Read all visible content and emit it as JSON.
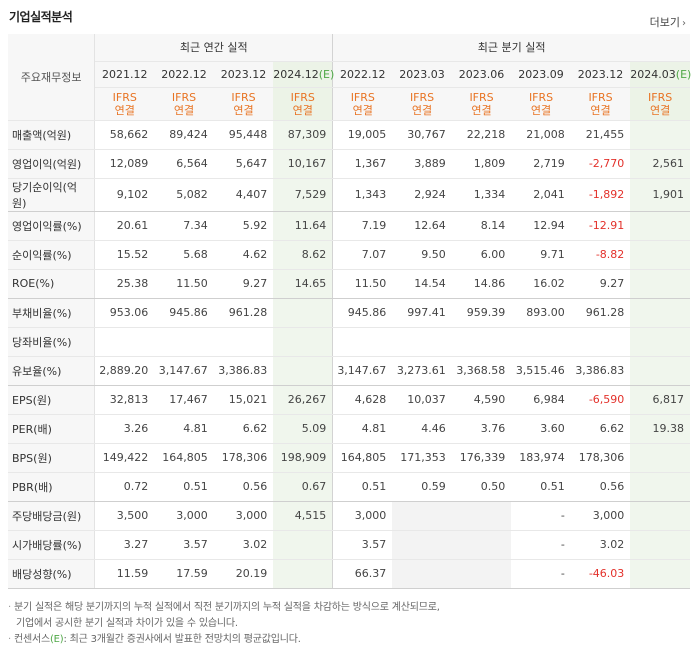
{
  "title": "기업실적분석",
  "more_label": "더보기",
  "more_arrow": "›",
  "label_header": "주요재무정보",
  "annual_header": "최근 연간 실적",
  "quarter_header": "최근 분기 실적",
  "annual_periods": [
    "2021.12",
    "2022.12",
    "2023.12",
    "2024.12"
  ],
  "annual_est_suffix": "(E)",
  "quarter_periods": [
    "2022.12",
    "2023.03",
    "2023.06",
    "2023.09",
    "2023.12",
    "2024.03"
  ],
  "quarter_est_suffix": "(E)",
  "ifrs_line1": "IFRS",
  "ifrs_line2": "연결",
  "rows": [
    {
      "label": "매출액(억원)",
      "annual": [
        "58,662",
        "89,424",
        "95,448",
        "87,309"
      ],
      "quarter": [
        "19,005",
        "30,767",
        "22,218",
        "21,008",
        "21,455",
        ""
      ]
    },
    {
      "label": "영업이익(억원)",
      "annual": [
        "12,089",
        "6,564",
        "5,647",
        "10,167"
      ],
      "quarter": [
        "1,367",
        "3,889",
        "1,809",
        "2,719",
        "-2,770",
        "2,561"
      ]
    },
    {
      "label": "당기순이익(억원)",
      "annual": [
        "9,102",
        "5,082",
        "4,407",
        "7,529"
      ],
      "quarter": [
        "1,343",
        "2,924",
        "1,334",
        "2,041",
        "-1,892",
        "1,901"
      ]
    },
    {
      "label": "영업이익률(%)",
      "annual": [
        "20.61",
        "7.34",
        "5.92",
        "11.64"
      ],
      "quarter": [
        "7.19",
        "12.64",
        "8.14",
        "12.94",
        "-12.91",
        ""
      ]
    },
    {
      "label": "순이익률(%)",
      "annual": [
        "15.52",
        "5.68",
        "4.62",
        "8.62"
      ],
      "quarter": [
        "7.07",
        "9.50",
        "6.00",
        "9.71",
        "-8.82",
        ""
      ]
    },
    {
      "label": "ROE(%)",
      "annual": [
        "25.38",
        "11.50",
        "9.27",
        "14.65"
      ],
      "quarter": [
        "11.50",
        "14.54",
        "14.86",
        "16.02",
        "9.27",
        ""
      ]
    },
    {
      "label": "부채비율(%)",
      "annual": [
        "953.06",
        "945.86",
        "961.28",
        ""
      ],
      "quarter": [
        "945.86",
        "997.41",
        "959.39",
        "893.00",
        "961.28",
        ""
      ]
    },
    {
      "label": "당좌비율(%)",
      "annual": [
        "",
        "",
        "",
        ""
      ],
      "quarter": [
        "",
        "",
        "",
        "",
        "",
        ""
      ]
    },
    {
      "label": "유보율(%)",
      "annual": [
        "2,889.20",
        "3,147.67",
        "3,386.83",
        ""
      ],
      "quarter": [
        "3,147.67",
        "3,273.61",
        "3,368.58",
        "3,515.46",
        "3,386.83",
        ""
      ]
    },
    {
      "label": "EPS(원)",
      "annual": [
        "32,813",
        "17,467",
        "15,021",
        "26,267"
      ],
      "quarter": [
        "4,628",
        "10,037",
        "4,590",
        "6,984",
        "-6,590",
        "6,817"
      ]
    },
    {
      "label": "PER(배)",
      "annual": [
        "3.26",
        "4.81",
        "6.62",
        "5.09"
      ],
      "quarter": [
        "4.81",
        "4.46",
        "3.76",
        "3.60",
        "6.62",
        "19.38"
      ]
    },
    {
      "label": "BPS(원)",
      "annual": [
        "149,422",
        "164,805",
        "178,306",
        "198,909"
      ],
      "quarter": [
        "164,805",
        "171,353",
        "176,339",
        "183,974",
        "178,306",
        ""
      ]
    },
    {
      "label": "PBR(배)",
      "annual": [
        "0.72",
        "0.51",
        "0.56",
        "0.67"
      ],
      "quarter": [
        "0.51",
        "0.59",
        "0.50",
        "0.51",
        "0.56",
        ""
      ]
    },
    {
      "label": "주당배당금(원)",
      "annual": [
        "3,500",
        "3,000",
        "3,000",
        "4,515"
      ],
      "quarter": [
        "3,000",
        "",
        "",
        "-",
        "3,000",
        ""
      ]
    },
    {
      "label": "시가배당률(%)",
      "annual": [
        "3.27",
        "3.57",
        "3.02",
        ""
      ],
      "quarter": [
        "3.57",
        "",
        "",
        "-",
        "3.02",
        ""
      ]
    },
    {
      "label": "배당성향(%)",
      "annual": [
        "11.59",
        "17.59",
        "20.19",
        ""
      ],
      "quarter": [
        "66.37",
        "",
        "",
        "-",
        "-46.03",
        ""
      ]
    }
  ],
  "notes": {
    "line1": "분기 실적은 해당 분기까지의 누적 실적에서 직전 분기까지의 누적 실적을 차감하는 방식으로 계산되므로,",
    "line2": "기업에서 공시한 분기 실적과 차이가 있을 수 있습니다.",
    "line3_prefix": "컨센서스",
    "line3_mark": "(E)",
    "line3_suffix": ": 최근 3개월간 증권사에서 발표한 전망치의 평균값입니다.",
    "bullet": "·"
  },
  "colors": {
    "ifrs": "#e87424",
    "negative": "#e3312b",
    "estimate_bg": "#f0f6ed",
    "estimate_mark": "#4fa846"
  }
}
